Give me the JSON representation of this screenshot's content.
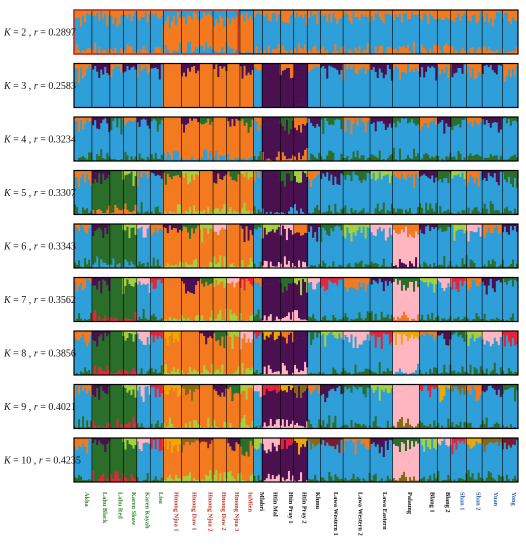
{
  "chart_data": {
    "type": "bar",
    "subtype": "stacked-admixture",
    "title": "",
    "panels": [
      {
        "K": 2,
        "r": "0.2897"
      },
      {
        "K": 3,
        "r": "0.2583"
      },
      {
        "K": 4,
        "r": "0.3234"
      },
      {
        "K": 5,
        "r": "0.3307"
      },
      {
        "K": 6,
        "r": "0.3343"
      },
      {
        "K": 7,
        "r": "0.3562"
      },
      {
        "K": 8,
        "r": "0.3856"
      },
      {
        "K": 9,
        "r": "0.4021"
      },
      {
        "K": 10,
        "r": "0.4235"
      }
    ],
    "populations": [
      {
        "name": "Akha",
        "color": "#2e8b2e"
      },
      {
        "name": "Lahu Black",
        "color": "#2e8b2e"
      },
      {
        "name": "Lahu Red",
        "color": "#2e8b2e"
      },
      {
        "name": "Karen Skaw",
        "color": "#2e8b2e"
      },
      {
        "name": "Karen Kayah",
        "color": "#2e8b2e"
      },
      {
        "name": "Lisu",
        "color": "#2e8b2e"
      },
      {
        "name": "Hmong Njua 1",
        "color": "#c0392b"
      },
      {
        "name": "Hmong Daw 1",
        "color": "#c0392b"
      },
      {
        "name": "Hmong Njua 2",
        "color": "#c0392b"
      },
      {
        "name": "Hmong Daw 2",
        "color": "#c0392b"
      },
      {
        "name": "Hmong Njua 3",
        "color": "#c0392b"
      },
      {
        "name": "IuMien",
        "color": "#c0392b"
      },
      {
        "name": "Mlabri",
        "color": "#111111"
      },
      {
        "name": "Htin Mal",
        "color": "#111111"
      },
      {
        "name": "Htin Pray 1",
        "color": "#111111"
      },
      {
        "name": "Htin Pray 2",
        "color": "#111111"
      },
      {
        "name": "Khmu",
        "color": "#111111"
      },
      {
        "name": "Lawa Western 1",
        "color": "#111111"
      },
      {
        "name": "Lawa Western 2",
        "color": "#111111"
      },
      {
        "name": "Lawa Eastern",
        "color": "#111111"
      },
      {
        "name": "Palaung",
        "color": "#111111"
      },
      {
        "name": "Blang 1",
        "color": "#111111"
      },
      {
        "name": "Blang 2",
        "color": "#111111"
      },
      {
        "name": "Shan 1",
        "color": "#2f5fb3"
      },
      {
        "name": "Shan 2",
        "color": "#2f5fb3"
      },
      {
        "name": "Yuan",
        "color": "#2f5fb3"
      },
      {
        "name": "Yong",
        "color": "#2f5fb3"
      }
    ],
    "popPositions": [
      0.02,
      0.06,
      0.1,
      0.14,
      0.18,
      0.22,
      0.27,
      0.31,
      0.35,
      0.39,
      0.43,
      0.47,
      0.51,
      0.55,
      0.59,
      0.63,
      0.67,
      0.71,
      0.755,
      0.8,
      0.845,
      0.885,
      0.915,
      0.945,
      0.975,
      0.99,
      0.995
    ],
    "ancestryColors": [
      "#2e9fd8",
      "#f47a20",
      "#4a1050",
      "#2a6e2a",
      "#a8d03c",
      "#ffb6c1",
      "#e8233c",
      "#f0a800",
      "#8b6914",
      "#7a1d2e"
    ],
    "highlightBoxes": [
      {
        "panel": 0,
        "x0": 0.0,
        "x1": 0.37,
        "color": "#c0392b"
      }
    ]
  }
}
